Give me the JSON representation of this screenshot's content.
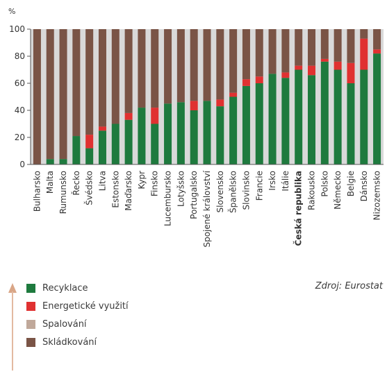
{
  "chart_data": {
    "type": "bar",
    "stacked": true,
    "ylabel": "%",
    "ylim": [
      0,
      100
    ],
    "yticks": [
      0,
      20,
      40,
      60,
      80,
      100
    ],
    "grid": false,
    "legend_position": "bottom-left",
    "categories": [
      "Bulharsko",
      "Malta",
      "Rumunsko",
      "Řecko",
      "Švédsko",
      "Litva",
      "Estonsko",
      "Maďarsko",
      "Kypr",
      "Finsko",
      "Lucembursko",
      "Lotyšsko",
      "Portugalsko",
      "Spojené království",
      "Slovensko",
      "Španělsko",
      "Slovinsko",
      "Francie",
      "Irsko",
      "Itálie",
      "Česká republika",
      "Rakousko",
      "Polsko",
      "Německo",
      "Belgie",
      "Dánsko",
      "Nizozemsko"
    ],
    "highlight_category": "Česká republika",
    "series": [
      {
        "name": "Recyklace",
        "color": "#1e7a3e",
        "values": [
          0,
          4,
          4,
          21,
          12,
          25,
          30,
          33,
          42,
          30,
          45,
          46,
          40,
          47,
          43,
          50,
          58,
          60,
          67,
          64,
          70,
          66,
          76,
          70,
          60,
          70,
          82
        ]
      },
      {
        "name": "Energetické využití",
        "color": "#e03131",
        "values": [
          0,
          0,
          0,
          0,
          10,
          3,
          0,
          5,
          0,
          12,
          0,
          0,
          7,
          0,
          5,
          3,
          5,
          5,
          0,
          4,
          3,
          7,
          2,
          6,
          15,
          23,
          3
        ]
      },
      {
        "name": "Spalování",
        "color": "#c0a89a",
        "values": [
          0,
          0,
          0,
          0,
          0,
          0,
          0,
          0,
          0,
          0,
          0,
          0,
          0,
          0,
          0,
          0,
          0,
          0,
          0,
          0,
          0,
          0,
          0,
          0,
          0,
          0,
          0
        ]
      },
      {
        "name": "Skládkování",
        "color": "#7a5446",
        "values": [
          100,
          96,
          96,
          79,
          78,
          72,
          70,
          62,
          58,
          58,
          55,
          54,
          53,
          53,
          52,
          47,
          37,
          35,
          33,
          32,
          27,
          27,
          22,
          24,
          25,
          7,
          15
        ]
      }
    ]
  },
  "legend": {
    "items": [
      {
        "label": "Recyklace",
        "color": "#1e7a3e"
      },
      {
        "label": "Energetické využití",
        "color": "#e03131"
      },
      {
        "label": "Spalování",
        "color": "#c0a89a"
      },
      {
        "label": "Skládkování",
        "color": "#7a5446"
      }
    ]
  },
  "source": "Zdroj: Eurostat"
}
